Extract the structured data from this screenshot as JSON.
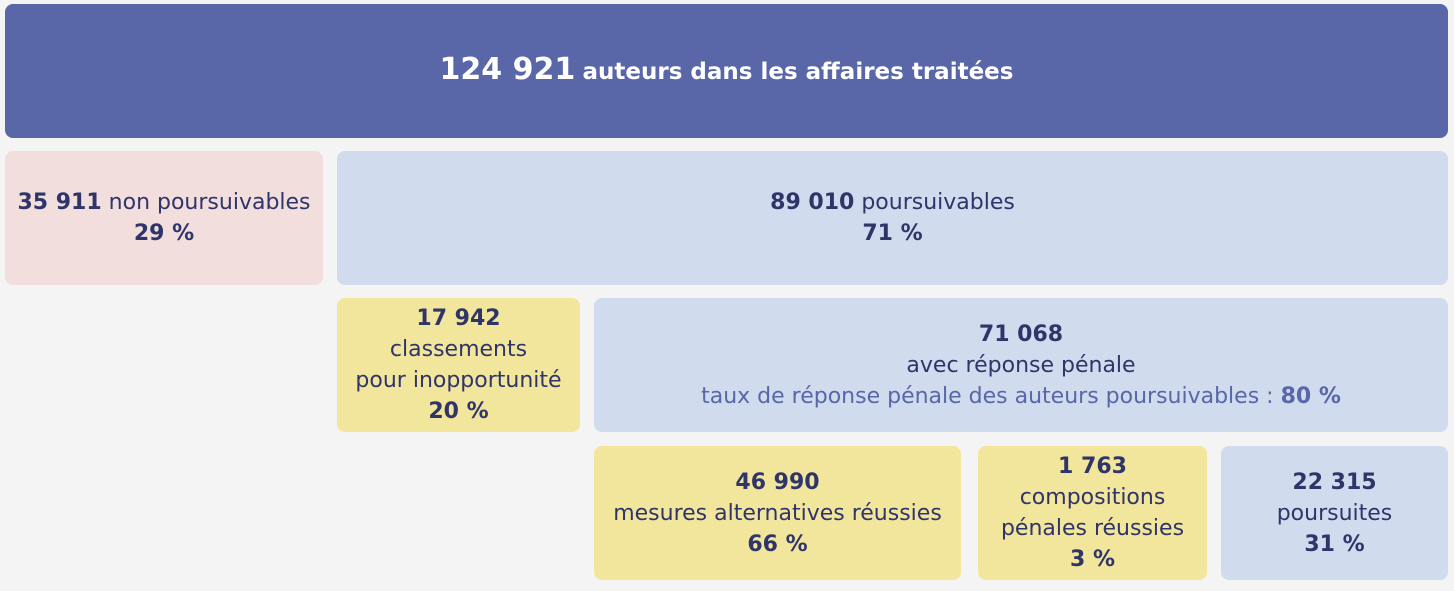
{
  "total": {
    "value": "124 921",
    "label": "auteurs dans les affaires traitées"
  },
  "non_poursuivables": {
    "value": "35 911",
    "label": "non poursuivables",
    "pct": "29 %"
  },
  "poursuivables": {
    "value": "89 010",
    "label": "poursuivables",
    "pct": "71 %"
  },
  "classements": {
    "value": "17 942",
    "label_1": "classements",
    "label_2": "pour inopportunité",
    "pct": "20 %"
  },
  "reponse_penale": {
    "value": "71 068",
    "label": "avec réponse pénale",
    "rate_label": "taux de réponse pénale des auteurs poursuivables :",
    "rate_value": "80 %"
  },
  "mesures_alternatives": {
    "value": "46 990",
    "label": "mesures alternatives réussies",
    "pct": "66 %"
  },
  "compositions": {
    "value": "1 763",
    "label_1": "compositions",
    "label_2": "pénales réussies",
    "pct": "3 %"
  },
  "poursuites": {
    "value": "22 315",
    "label": "poursuites",
    "pct": "31 %"
  },
  "colors": {
    "dark_blue": "#5966a8",
    "light_blue": "#d0dbee",
    "pink": "#f3dede",
    "yellow": "#f2e59c",
    "text": "#2f3569"
  }
}
